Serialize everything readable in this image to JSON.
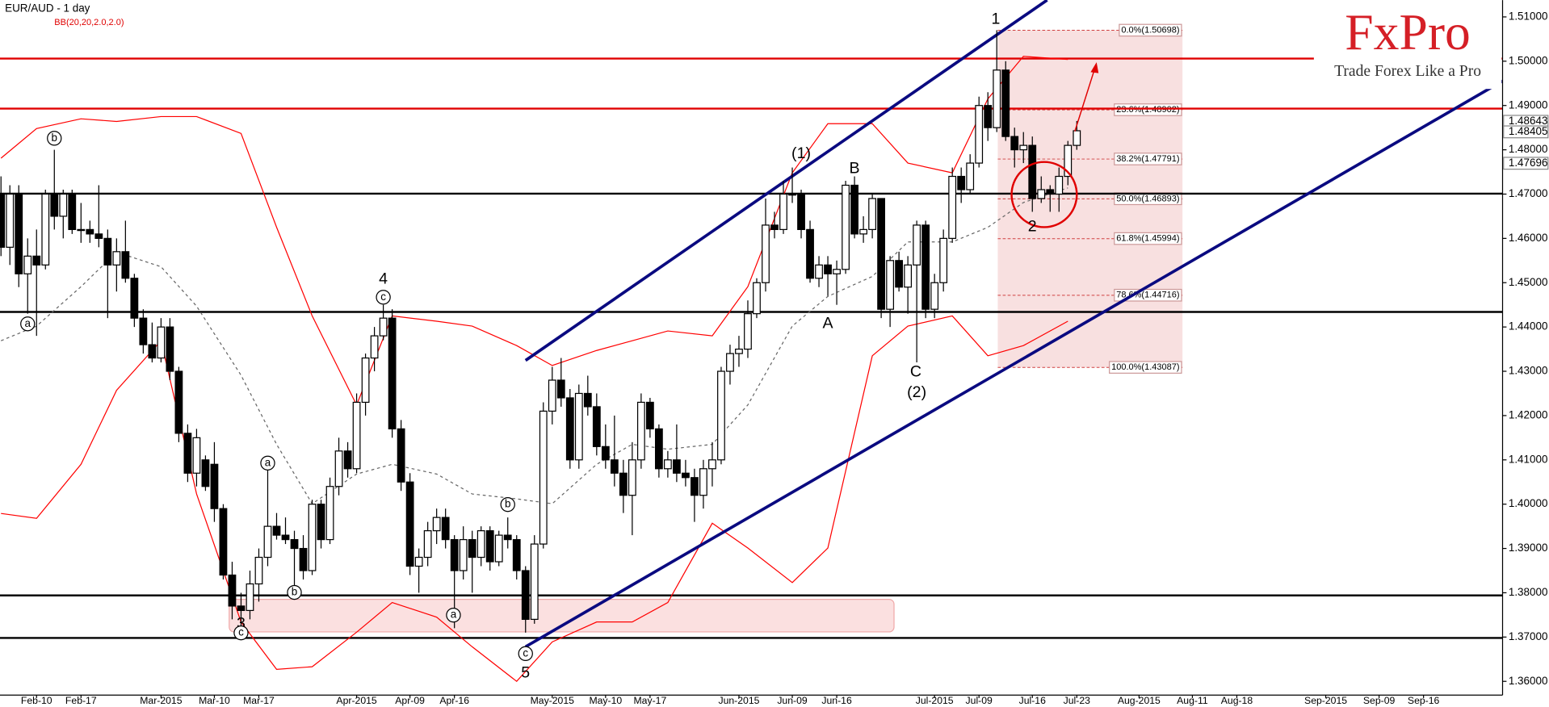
{
  "chart_data": {
    "type": "candlestick",
    "title": "EUR/AUD - 1 day",
    "indicator": "BB(20,20,2.0,2.0)",
    "brand": {
      "name": "FxPro",
      "tagline": "Trade Forex Like a Pro"
    },
    "ylim": [
      1.3569,
      1.5138
    ],
    "yticks": [
      {
        "value": 1.51,
        "label": "1.51000"
      },
      {
        "value": 1.5,
        "label": "1.50000"
      },
      {
        "value": 1.49,
        "label": "1.49000"
      },
      {
        "value": 1.48,
        "label": "1.48000"
      },
      {
        "value": 1.47,
        "label": "1.47000"
      },
      {
        "value": 1.46,
        "label": "1.46000"
      },
      {
        "value": 1.45,
        "label": "1.45000"
      },
      {
        "value": 1.44,
        "label": "1.44000"
      },
      {
        "value": 1.43,
        "label": "1.43000"
      },
      {
        "value": 1.42,
        "label": "1.42000"
      },
      {
        "value": 1.41,
        "label": "1.41000"
      },
      {
        "value": 1.4,
        "label": "1.40000"
      },
      {
        "value": 1.39,
        "label": "1.39000"
      },
      {
        "value": 1.38,
        "label": "1.38000"
      },
      {
        "value": 1.37,
        "label": "1.37000"
      },
      {
        "value": 1.36,
        "label": "1.36000"
      }
    ],
    "price_tags": [
      1.48643,
      1.48405,
      1.47696
    ],
    "categories": [
      null,
      null,
      null,
      null,
      "Feb-10",
      null,
      null,
      null,
      null,
      "Feb-17",
      null,
      null,
      null,
      null,
      null,
      null,
      null,
      null,
      "Mar-2015",
      null,
      null,
      null,
      null,
      null,
      "Mar-10",
      null,
      null,
      null,
      null,
      "Mar-17",
      null,
      null,
      null,
      null,
      null,
      null,
      null,
      null,
      null,
      null,
      "Apr-2015",
      null,
      null,
      null,
      null,
      null,
      "Apr-09",
      null,
      null,
      null,
      null,
      "Apr-16",
      null,
      null,
      null,
      null,
      null,
      null,
      null,
      null,
      null,
      null,
      "May-2015",
      null,
      null,
      null,
      null,
      null,
      "May-10",
      null,
      null,
      null,
      null,
      "May-17",
      null,
      null,
      null,
      null,
      null,
      null,
      null,
      null,
      null,
      "Jun-2015",
      null,
      null,
      null,
      null,
      null,
      "Jun-09",
      null,
      null,
      null,
      null,
      "Jun-16",
      null,
      null,
      null,
      null,
      null,
      null,
      null,
      null,
      null,
      null,
      "Jul-2015",
      null,
      null,
      null,
      null,
      "Jul-09",
      null,
      null,
      null,
      null,
      null,
      "Jul-16",
      null,
      null,
      null,
      null,
      "Jul-23",
      null,
      null,
      null,
      null,
      null,
      null,
      "Aug-2015",
      null,
      null,
      null,
      null,
      null,
      "Aug-11",
      null,
      null,
      null,
      null,
      "Aug-18",
      null,
      null,
      null,
      null,
      null,
      null,
      null,
      null,
      null,
      "Sep-2015",
      null,
      null,
      null,
      null,
      null,
      "Sep-09",
      null,
      null,
      null,
      null,
      "Sep-16"
    ],
    "ohlc": [
      [
        1.47,
        1.474,
        1.456,
        1.458
      ],
      [
        1.458,
        1.472,
        1.454,
        1.47
      ],
      [
        1.47,
        1.472,
        1.449,
        1.452
      ],
      [
        1.452,
        1.46,
        1.443,
        1.456
      ],
      [
        1.456,
        1.462,
        1.438,
        1.454
      ],
      [
        1.454,
        1.471,
        1.453,
        1.47
      ],
      [
        1.47,
        1.48,
        1.462,
        1.465
      ],
      [
        1.465,
        1.471,
        1.46,
        1.47
      ],
      [
        1.47,
        1.471,
        1.461,
        1.462
      ],
      [
        1.462,
        1.468,
        1.459,
        1.462
      ],
      [
        1.462,
        1.464,
        1.459,
        1.461
      ],
      [
        1.461,
        1.472,
        1.458,
        1.46
      ],
      [
        1.46,
        1.462,
        1.442,
        1.454
      ],
      [
        1.454,
        1.46,
        1.448,
        1.457
      ],
      [
        1.457,
        1.464,
        1.45,
        1.451
      ],
      [
        1.451,
        1.452,
        1.44,
        1.442
      ],
      [
        1.442,
        1.444,
        1.434,
        1.436
      ],
      [
        1.436,
        1.441,
        1.432,
        1.433
      ],
      [
        1.433,
        1.442,
        1.432,
        1.44
      ],
      [
        1.44,
        1.442,
        1.428,
        1.43
      ],
      [
        1.43,
        1.431,
        1.414,
        1.416
      ],
      [
        1.416,
        1.418,
        1.405,
        1.407
      ],
      [
        1.407,
        1.417,
        1.404,
        1.415
      ],
      [
        1.41,
        1.411,
        1.403,
        1.404
      ],
      [
        1.409,
        1.414,
        1.396,
        1.399
      ],
      [
        1.399,
        1.4,
        1.383,
        1.384
      ],
      [
        1.384,
        1.387,
        1.374,
        1.377
      ],
      [
        1.377,
        1.38,
        1.372,
        1.376
      ],
      [
        1.376,
        1.385,
        1.374,
        1.382
      ],
      [
        1.382,
        1.39,
        1.378,
        1.388
      ],
      [
        1.388,
        1.408,
        1.386,
        1.395
      ],
      [
        1.395,
        1.398,
        1.392,
        1.393
      ],
      [
        1.393,
        1.397,
        1.391,
        1.392
      ],
      [
        1.392,
        1.394,
        1.38,
        1.39
      ],
      [
        1.39,
        1.393,
        1.383,
        1.385
      ],
      [
        1.385,
        1.401,
        1.384,
        1.4
      ],
      [
        1.4,
        1.401,
        1.39,
        1.392
      ],
      [
        1.392,
        1.406,
        1.391,
        1.404
      ],
      [
        1.404,
        1.415,
        1.402,
        1.412
      ],
      [
        1.412,
        1.414,
        1.406,
        1.408
      ],
      [
        1.408,
        1.425,
        1.407,
        1.423
      ],
      [
        1.423,
        1.434,
        1.42,
        1.433
      ],
      [
        1.433,
        1.44,
        1.43,
        1.438
      ],
      [
        1.438,
        1.445,
        1.437,
        1.442
      ],
      [
        1.442,
        1.444,
        1.415,
        1.417
      ],
      [
        1.417,
        1.419,
        1.403,
        1.405
      ],
      [
        1.405,
        1.407,
        1.384,
        1.386
      ],
      [
        1.386,
        1.39,
        1.38,
        1.388
      ],
      [
        1.388,
        1.396,
        1.386,
        1.394
      ],
      [
        1.394,
        1.399,
        1.391,
        1.397
      ],
      [
        1.397,
        1.399,
        1.39,
        1.392
      ],
      [
        1.392,
        1.393,
        1.372,
        1.385
      ],
      [
        1.385,
        1.395,
        1.383,
        1.392
      ],
      [
        1.392,
        1.394,
        1.38,
        1.388
      ],
      [
        1.388,
        1.395,
        1.386,
        1.394
      ],
      [
        1.394,
        1.395,
        1.385,
        1.387
      ],
      [
        1.387,
        1.394,
        1.386,
        1.393
      ],
      [
        1.393,
        1.397,
        1.39,
        1.392
      ],
      [
        1.392,
        1.393,
        1.383,
        1.385
      ],
      [
        1.385,
        1.386,
        1.371,
        1.374
      ],
      [
        1.374,
        1.393,
        1.373,
        1.391
      ],
      [
        1.391,
        1.423,
        1.39,
        1.421
      ],
      [
        1.421,
        1.431,
        1.418,
        1.428
      ],
      [
        1.428,
        1.433,
        1.422,
        1.424
      ],
      [
        1.424,
        1.426,
        1.408,
        1.41
      ],
      [
        1.41,
        1.427,
        1.408,
        1.425
      ],
      [
        1.425,
        1.429,
        1.42,
        1.422
      ],
      [
        1.422,
        1.425,
        1.411,
        1.413
      ],
      [
        1.413,
        1.418,
        1.408,
        1.41
      ],
      [
        1.41,
        1.42,
        1.404,
        1.407
      ],
      [
        1.407,
        1.41,
        1.398,
        1.402
      ],
      [
        1.402,
        1.414,
        1.393,
        1.41
      ],
      [
        1.41,
        1.425,
        1.408,
        1.423
      ],
      [
        1.423,
        1.424,
        1.415,
        1.417
      ],
      [
        1.417,
        1.418,
        1.406,
        1.408
      ],
      [
        1.408,
        1.412,
        1.406,
        1.41
      ],
      [
        1.41,
        1.418,
        1.405,
        1.407
      ],
      [
        1.407,
        1.41,
        1.404,
        1.406
      ],
      [
        1.406,
        1.408,
        1.396,
        1.402
      ],
      [
        1.402,
        1.41,
        1.399,
        1.408
      ],
      [
        1.408,
        1.414,
        1.404,
        1.41
      ],
      [
        1.41,
        1.431,
        1.409,
        1.43
      ],
      [
        1.43,
        1.436,
        1.427,
        1.434
      ],
      [
        1.434,
        1.438,
        1.431,
        1.435
      ],
      [
        1.435,
        1.446,
        1.433,
        1.443
      ],
      [
        1.443,
        1.451,
        1.442,
        1.45
      ],
      [
        1.45,
        1.469,
        1.448,
        1.463
      ],
      [
        1.463,
        1.466,
        1.46,
        1.462
      ],
      [
        1.462,
        1.473,
        1.461,
        1.47
      ],
      [
        1.47,
        1.476,
        1.468,
        1.47
      ],
      [
        1.47,
        1.471,
        1.46,
        1.462
      ],
      [
        1.462,
        1.464,
        1.45,
        1.451
      ],
      [
        1.451,
        1.456,
        1.449,
        1.454
      ],
      [
        1.454,
        1.456,
        1.447,
        1.452
      ],
      [
        1.452,
        1.455,
        1.445,
        1.453
      ],
      [
        1.453,
        1.473,
        1.452,
        1.472
      ],
      [
        1.472,
        1.474,
        1.46,
        1.461
      ],
      [
        1.461,
        1.465,
        1.459,
        1.462
      ],
      [
        1.462,
        1.47,
        1.46,
        1.469
      ],
      [
        1.469,
        1.469,
        1.442,
        1.444
      ],
      [
        1.444,
        1.456,
        1.44,
        1.455
      ],
      [
        1.455,
        1.457,
        1.448,
        1.449
      ],
      [
        1.449,
        1.456,
        1.443,
        1.454
      ],
      [
        1.454,
        1.464,
        1.432,
        1.463
      ],
      [
        1.463,
        1.464,
        1.442,
        1.444
      ],
      [
        1.444,
        1.452,
        1.442,
        1.45
      ],
      [
        1.45,
        1.462,
        1.448,
        1.46
      ],
      [
        1.46,
        1.476,
        1.459,
        1.474
      ],
      [
        1.474,
        1.476,
        1.468,
        1.471
      ],
      [
        1.471,
        1.479,
        1.47,
        1.477
      ],
      [
        1.477,
        1.492,
        1.476,
        1.49
      ],
      [
        1.49,
        1.493,
        1.482,
        1.485
      ],
      [
        1.485,
        1.507,
        1.484,
        1.498
      ],
      [
        1.498,
        1.5,
        1.482,
        1.483
      ],
      [
        1.483,
        1.485,
        1.476,
        1.48
      ],
      [
        1.48,
        1.484,
        1.477,
        1.481
      ],
      [
        1.481,
        1.483,
        1.466,
        1.469
      ],
      [
        1.469,
        1.474,
        1.468,
        1.471
      ],
      [
        1.471,
        1.472,
        1.466,
        1.47
      ],
      [
        1.47,
        1.476,
        1.466,
        1.474
      ],
      [
        1.474,
        1.482,
        1.472,
        1.481
      ],
      [
        1.481,
        1.4865,
        1.48,
        1.4843
      ],
      null,
      null,
      null,
      null,
      null,
      null,
      null,
      null,
      null,
      null,
      null,
      null,
      null,
      null,
      null,
      null,
      null,
      null,
      null,
      null,
      null,
      null,
      null,
      null,
      null,
      null,
      null,
      null,
      null,
      null,
      null,
      null,
      null,
      null,
      null,
      null,
      null,
      null,
      null
    ],
    "up_color": "#ffffff",
    "down_color": "#000000",
    "bollinger": {
      "x": [
        0,
        4,
        9,
        13,
        18,
        22,
        27,
        31,
        35,
        40,
        44,
        49,
        53,
        58,
        62,
        67,
        71,
        75,
        80,
        84,
        89,
        93,
        98,
        102,
        107,
        111,
        115,
        120
      ],
      "upper": [
        1.4781,
        1.4848,
        1.487,
        1.4864,
        1.4875,
        1.4875,
        1.4837,
        1.4625,
        1.4425,
        1.4224,
        1.4425,
        1.4413,
        1.4402,
        1.4358,
        1.4313,
        1.4347,
        1.4369,
        1.4391,
        1.438,
        1.4491,
        1.4748,
        1.4859,
        1.4859,
        1.477,
        1.4748,
        1.4915,
        1.5011,
        1.5004
      ],
      "middle": [
        1.4369,
        1.4402,
        1.4491,
        1.4569,
        1.4536,
        1.4447,
        1.4291,
        1.4135,
        1.4001,
        1.4068,
        1.409,
        1.4068,
        1.4023,
        1.4012,
        1.4001,
        1.409,
        1.4135,
        1.4124,
        1.4135,
        1.4224,
        1.4402,
        1.4469,
        1.4514,
        1.4592,
        1.4592,
        1.4625,
        1.4681,
        1.4714
      ],
      "lower": [
        1.3979,
        1.3968,
        1.409,
        1.4257,
        1.4369,
        1.4023,
        1.3734,
        1.3627,
        1.3633,
        1.3711,
        1.3778,
        1.3745,
        1.3678,
        1.36,
        1.3689,
        1.3734,
        1.3734,
        1.3778,
        1.3957,
        1.3901,
        1.3823,
        1.3901,
        1.4335,
        1.4402,
        1.4425,
        1.4335,
        1.4358,
        1.4413
      ],
      "band_color": "#ff0000",
      "middle_color": "#666666"
    },
    "levels": [
      {
        "value": 1.5006,
        "color": "#e00000"
      },
      {
        "value": 1.4893,
        "color": "#e00000"
      },
      {
        "value": 1.4701,
        "color": "#000000"
      },
      {
        "value": 1.4434,
        "color": "#000000"
      },
      {
        "value": 1.3794,
        "color": "#000000"
      },
      {
        "value": 1.3698,
        "color": "#000000"
      }
    ],
    "fibonacci": {
      "levels": [
        {
          "value": 1.50698,
          "label": "0.0%(1.50698)"
        },
        {
          "value": 1.48902,
          "label": "23.6%(1.48902)"
        },
        {
          "value": 1.47791,
          "label": "38.2%(1.47791)"
        },
        {
          "value": 1.46893,
          "label": "50.0%(1.46893)"
        },
        {
          "value": 1.45994,
          "label": "61.8%(1.45994)"
        },
        {
          "value": 1.44716,
          "label": "78.6%(1.44716)"
        },
        {
          "value": 1.43087,
          "label": "100.0%(1.43087)"
        }
      ]
    },
    "annotations": [
      "1",
      "(1)",
      "B",
      "A",
      "C",
      "(2)",
      "2",
      "4",
      "3",
      "5",
      "b",
      "a",
      "c",
      "a",
      "b",
      "c",
      "b",
      "a",
      "c"
    ]
  }
}
